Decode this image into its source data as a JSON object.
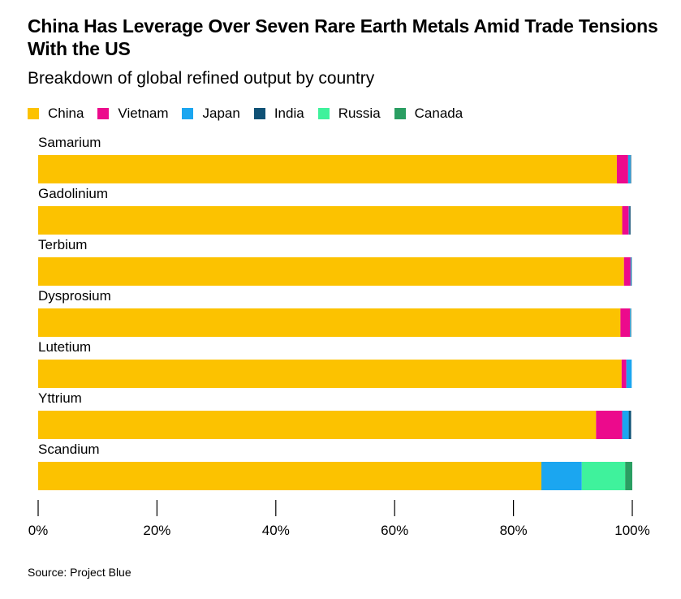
{
  "header": {
    "title": "China Has Leverage Over Seven Rare Earth Metals Amid Trade Tensions With the US",
    "subtitle": "Breakdown of global refined output by country"
  },
  "footer": {
    "source": "Source: Project Blue"
  },
  "chart_data": {
    "type": "bar",
    "orientation": "horizontal",
    "stacked": true,
    "title": "China Has Leverage Over Seven Rare Earth Metals Amid Trade Tensions With the US",
    "subtitle": "Breakdown of global refined output by country",
    "categories": [
      "Samarium",
      "Gadolinium",
      "Terbium",
      "Dysprosium",
      "Lutetium",
      "Yttrium",
      "Scandium"
    ],
    "series": [
      {
        "name": "China",
        "color": "#fcc200",
        "values": [
          97.4,
          98.3,
          98.6,
          98.0,
          98.2,
          93.9,
          84.7
        ]
      },
      {
        "name": "Vietnam",
        "color": "#ec0a8c",
        "values": [
          1.9,
          1.1,
          1.1,
          1.6,
          0.8,
          4.4,
          0
        ]
      },
      {
        "name": "Japan",
        "color": "#1ba6f0",
        "values": [
          0.4,
          0.1,
          0.1,
          0.1,
          0.9,
          1.1,
          6.8
        ]
      },
      {
        "name": "India",
        "color": "#0f5175",
        "values": [
          0.1,
          0.2,
          0.1,
          0.1,
          0,
          0.4,
          0
        ]
      },
      {
        "name": "Russia",
        "color": "#3ff29c",
        "values": [
          0,
          0,
          0,
          0,
          0,
          0,
          7.3
        ]
      },
      {
        "name": "Canada",
        "color": "#2a9e62",
        "values": [
          0,
          0,
          0,
          0,
          0,
          0,
          1.2
        ]
      }
    ],
    "xlim": [
      0,
      100
    ],
    "xticks": [
      "0%",
      "20%",
      "40%",
      "60%",
      "80%",
      "100%"
    ],
    "grid": false,
    "legend": "top-left",
    "source": "Source: Project Blue"
  }
}
